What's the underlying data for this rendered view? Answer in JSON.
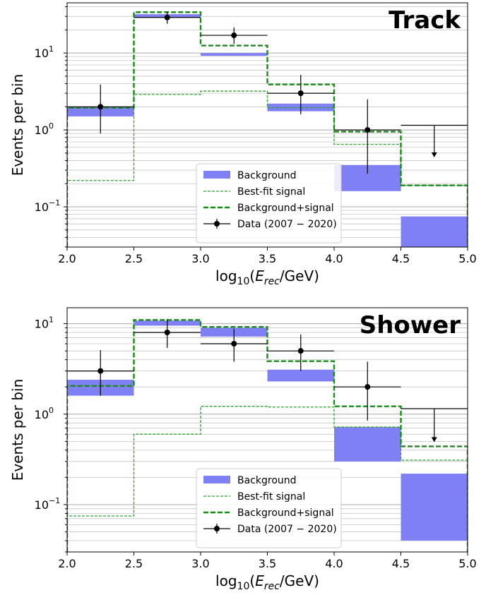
{
  "chart_data": [
    {
      "type": "histogram",
      "title": "Track",
      "xlabel": "log10(Erec/GeV)",
      "ylabel": "Events per bin",
      "yscale": "log",
      "xlim": [
        2.0,
        5.0
      ],
      "ylim": [
        0.03,
        45
      ],
      "grid": "horizontal minor and major",
      "legend_position": "bottom-center",
      "bin_edges": [
        2.0,
        2.5,
        3.0,
        3.5,
        4.0,
        4.5,
        5.0
      ],
      "xticks": [
        "2.0",
        "2.5",
        "3.0",
        "3.5",
        "4.0",
        "4.5",
        "5.0"
      ],
      "yticks": [
        {
          "value": 0.1,
          "label": "10",
          "exp": "−1"
        },
        {
          "value": 1,
          "label": "10",
          "exp": "0"
        },
        {
          "value": 10,
          "label": "10",
          "exp": "1"
        }
      ],
      "background_band": [
        [
          1.5,
          2.0
        ],
        [
          29,
          32
        ],
        [
          9.2,
          10.0
        ],
        [
          1.75,
          2.2
        ],
        [
          0.16,
          0.35
        ],
        [
          0.03,
          0.075
        ]
      ],
      "best_fit_signal": [
        0.22,
        2.9,
        3.2,
        1.95,
        0.65,
        0.19
      ],
      "background_plus_signal": [
        1.95,
        34,
        12.5,
        3.9,
        0.95,
        0.19
      ],
      "data": {
        "x": [
          2.25,
          2.75,
          3.25,
          3.75,
          4.25
        ],
        "y": [
          2.0,
          29.0,
          17.0,
          3.0,
          1.0
        ],
        "yerr_low": [
          0.9,
          24.0,
          13.2,
          1.6,
          0.27
        ],
        "yerr_high": [
          3.9,
          34.5,
          21.5,
          5.2,
          2.5
        ]
      },
      "upper_limit": {
        "x0": 4.5,
        "x1": 5.0,
        "x": 4.75,
        "y": 1.15,
        "arrow_to": 0.45
      },
      "legend": [
        "Background",
        "Best-fit signal",
        "Background+signal",
        "Data (2007 − 2020)"
      ]
    },
    {
      "type": "histogram",
      "title": "Shower",
      "xlabel": "log10(Erec/GeV)",
      "ylabel": "Events per bin",
      "yscale": "log",
      "xlim": [
        2.0,
        5.0
      ],
      "ylim": [
        0.03,
        15
      ],
      "grid": "horizontal minor and major",
      "legend_position": "bottom-center",
      "bin_edges": [
        2.0,
        2.5,
        3.0,
        3.5,
        4.0,
        4.5,
        5.0
      ],
      "xticks": [
        "2.0",
        "2.5",
        "3.0",
        "3.5",
        "4.0",
        "4.5",
        "5.0"
      ],
      "yticks": [
        {
          "value": 0.1,
          "label": "10",
          "exp": "−1"
        },
        {
          "value": 1,
          "label": "10",
          "exp": "0"
        },
        {
          "value": 10,
          "label": "10",
          "exp": "1"
        }
      ],
      "background_band": [
        [
          1.6,
          2.4
        ],
        [
          9.5,
          10.8
        ],
        [
          7.2,
          9.0
        ],
        [
          2.3,
          3.1
        ],
        [
          0.3,
          0.72
        ],
        [
          0.04,
          0.22
        ]
      ],
      "best_fit_signal": [
        0.075,
        0.6,
        1.22,
        1.2,
        0.72,
        0.31
      ],
      "background_plus_signal": [
        2.05,
        11.0,
        9.2,
        3.85,
        1.22,
        0.44
      ],
      "data": {
        "x": [
          2.25,
          2.75,
          3.25,
          3.75,
          4.25
        ],
        "y": [
          3.0,
          8.0,
          6.0,
          5.0,
          2.0
        ],
        "yerr_low": [
          1.6,
          5.4,
          3.8,
          3.0,
          0.85
        ],
        "yerr_high": [
          5.1,
          11.2,
          8.8,
          7.6,
          3.8
        ]
      },
      "upper_limit": {
        "x0": 4.5,
        "x1": 5.0,
        "x": 4.75,
        "y": 1.15,
        "arrow_to": 0.5
      },
      "legend": [
        "Background",
        "Best-fit signal",
        "Background+signal",
        "Data (2007 − 2020)"
      ]
    }
  ]
}
